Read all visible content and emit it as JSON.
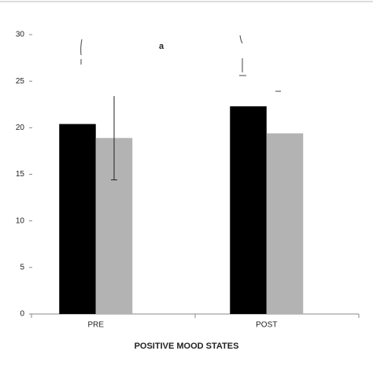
{
  "chart_data": {
    "type": "bar",
    "xlabel": "POSITIVE MOOD STATES",
    "annotation": "a",
    "categories": [
      "PRE",
      "POST"
    ],
    "series": [
      {
        "color": "#000000",
        "values": [
          20.4,
          22.3
        ]
      },
      {
        "color": "#b3b3b3",
        "values": [
          18.9,
          19.4
        ],
        "errors": [
          4.5,
          null
        ]
      }
    ],
    "ylim": [
      0,
      30
    ],
    "yticks": [
      0,
      5,
      10,
      15,
      20,
      25,
      30
    ]
  }
}
